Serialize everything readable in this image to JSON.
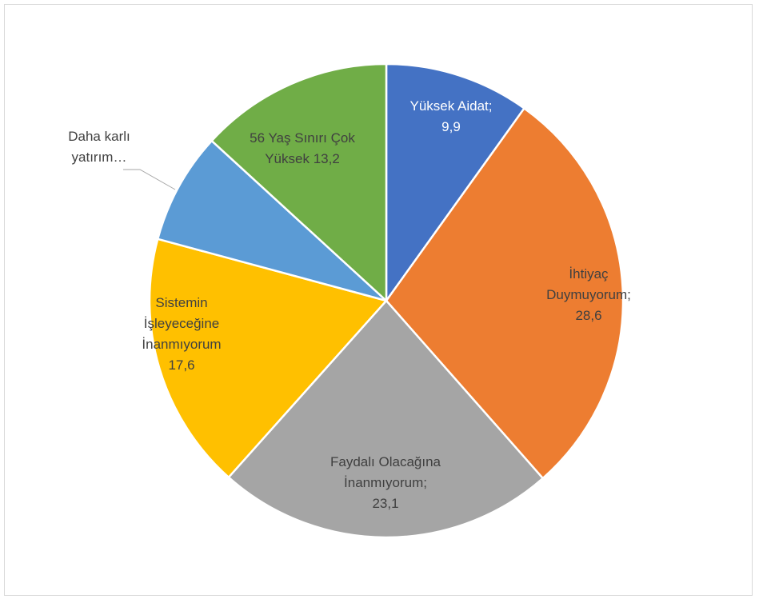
{
  "chart_data": {
    "type": "pie",
    "title": "",
    "start_angle_deg": 0,
    "direction": "clockwise",
    "slices": [
      {
        "label_lines": [
          "Yüksek Aidat;",
          "9,9"
        ],
        "value": 9.9,
        "color": "#4472C4",
        "label_color": "#ffffff"
      },
      {
        "label_lines": [
          "İhtiyaç",
          "Duymuyorum;",
          "28,6"
        ],
        "value": 28.6,
        "color": "#ED7D31",
        "label_color": "#404040"
      },
      {
        "label_lines": [
          "Faydalı Olacağına",
          "İnanmıyorum;",
          "23,1"
        ],
        "value": 23.1,
        "color": "#A5A5A5",
        "label_color": "#404040"
      },
      {
        "label_lines": [
          "Sistemin",
          "İşleyeceğine",
          "İnanmıyorum",
          "17,6"
        ],
        "value": 17.6,
        "color": "#FFC000",
        "label_color": "#404040"
      },
      {
        "label_lines": [
          "Daha karlı",
          "yatırım…"
        ],
        "value": 7.6,
        "color": "#5B9BD5",
        "label_color": "#404040",
        "leader_line": true
      },
      {
        "label_lines": [
          "56 Yaş Sınırı Çok",
          "Yüksek 13,2"
        ],
        "value": 13.2,
        "color": "#70AD47",
        "label_color": "#404040"
      }
    ]
  }
}
